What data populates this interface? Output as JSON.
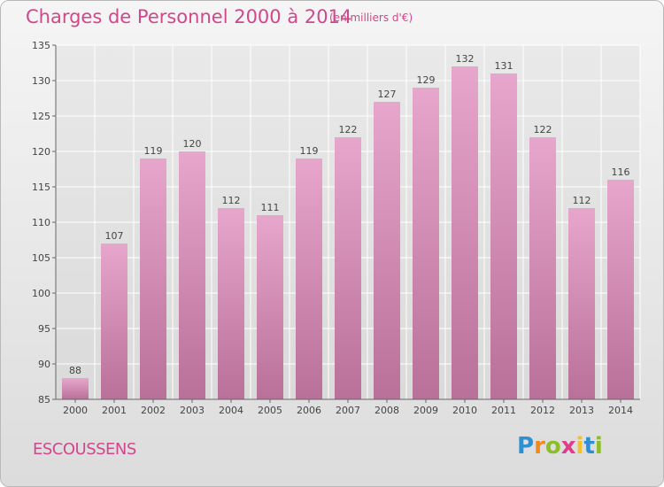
{
  "chart_data": {
    "type": "bar",
    "title": "Charges de Personnel 2000 à 2014",
    "subtitle": "(en milliers d'€)",
    "categories": [
      "2000",
      "2001",
      "2002",
      "2003",
      "2004",
      "2005",
      "2006",
      "2007",
      "2008",
      "2009",
      "2010",
      "2011",
      "2012",
      "2013",
      "2014"
    ],
    "values": [
      88,
      107,
      119,
      120,
      112,
      111,
      119,
      122,
      127,
      129,
      132,
      131,
      122,
      112,
      116
    ],
    "ylim": [
      85,
      135
    ],
    "yticks": [
      85,
      90,
      95,
      100,
      105,
      110,
      115,
      120,
      125,
      130,
      135
    ],
    "grid": true,
    "bar_color": "#d88eb8",
    "xlabel": "",
    "ylabel": ""
  },
  "footer": {
    "commune": "ESCOUSSENS",
    "logo": {
      "letters": [
        "P",
        "r",
        "o",
        "x",
        "i",
        "t",
        "i"
      ],
      "colors": [
        "#2f8fd1",
        "#f08a1c",
        "#8cbf26",
        "#e03c8c",
        "#f3c12a",
        "#2f8fd1",
        "#8cbf26"
      ]
    }
  },
  "colors": {
    "title": "#d1478b",
    "grid": "#ffffff",
    "axis": "#666666"
  }
}
